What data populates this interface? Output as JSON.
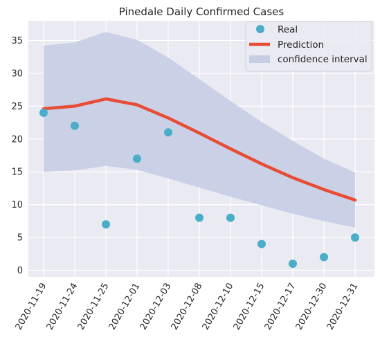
{
  "chart_data": {
    "type": "line",
    "title": "Pinedale Daily Confirmed Cases",
    "xlabel": "",
    "ylabel": "",
    "categories": [
      "2020-11-19",
      "2020-11-24",
      "2020-11-25",
      "2020-12-01",
      "2020-12-03",
      "2020-12-08",
      "2020-12-10",
      "2020-12-15",
      "2020-12-17",
      "2020-12-30",
      "2020-12-31"
    ],
    "ylim": [
      -1,
      38
    ],
    "yticks": [
      0,
      5,
      10,
      15,
      20,
      25,
      30,
      35
    ],
    "grid": true,
    "legend_position": "top-right",
    "series": [
      {
        "name": "Real",
        "kind": "scatter",
        "color": "#4aaec9",
        "values": [
          24,
          22,
          7,
          17,
          21,
          8,
          8,
          4,
          1,
          2,
          5
        ]
      },
      {
        "name": "Prediction",
        "kind": "line",
        "color": "#e84c35",
        "values": [
          24.6,
          25.0,
          26.1,
          25.2,
          23.2,
          20.9,
          18.5,
          16.2,
          14.1,
          12.3,
          10.7
        ]
      },
      {
        "name": "confidence interval",
        "kind": "band",
        "color": "#c7cde3",
        "lower": [
          15.0,
          15.2,
          15.9,
          15.3,
          14.0,
          12.6,
          11.2,
          9.9,
          8.6,
          7.5,
          6.5
        ],
        "upper": [
          34.2,
          34.7,
          36.3,
          35.1,
          32.4,
          29.1,
          25.8,
          22.6,
          19.7,
          17.0,
          14.9
        ]
      }
    ]
  }
}
